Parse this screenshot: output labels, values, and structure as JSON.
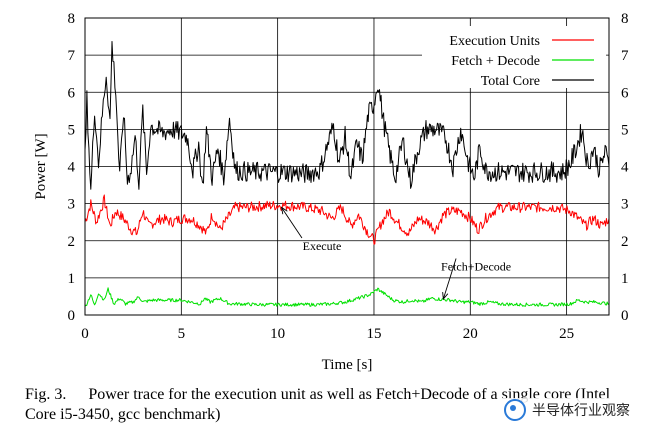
{
  "chart_data": {
    "type": "line",
    "xlabel": "Time [s]",
    "ylabel": "Power [W]",
    "xlim": [
      0,
      27.2
    ],
    "ylim": [
      0,
      8
    ],
    "x_ticks": [
      0,
      5,
      10,
      15,
      20,
      25
    ],
    "y_ticks": [
      0,
      1,
      2,
      3,
      4,
      5,
      6,
      7,
      8
    ],
    "grid": true,
    "legend_position": "top-right",
    "series": [
      {
        "name": "Execution Units",
        "color": "#ff0000",
        "points": [
          [
            0,
            2.5
          ],
          [
            0.3,
            3.0
          ],
          [
            0.6,
            2.5
          ],
          [
            1.0,
            3.1
          ],
          [
            1.3,
            2.4
          ],
          [
            1.6,
            2.8
          ],
          [
            2.0,
            2.6
          ],
          [
            2.4,
            2.3
          ],
          [
            2.7,
            2.2
          ],
          [
            3.0,
            2.8
          ],
          [
            3.3,
            2.4
          ],
          [
            3.6,
            2.5
          ],
          [
            4.0,
            2.6
          ],
          [
            4.5,
            2.5
          ],
          [
            5.0,
            2.6
          ],
          [
            5.5,
            2.6
          ],
          [
            6.0,
            2.4
          ],
          [
            6.3,
            2.2
          ],
          [
            6.6,
            2.7
          ],
          [
            7.0,
            2.3
          ],
          [
            7.4,
            2.6
          ],
          [
            7.8,
            2.9
          ],
          [
            8.5,
            2.9
          ],
          [
            9.5,
            2.95
          ],
          [
            10.5,
            2.95
          ],
          [
            11.5,
            2.9
          ],
          [
            12.3,
            2.8
          ],
          [
            12.8,
            2.6
          ],
          [
            13.3,
            2.9
          ],
          [
            13.8,
            2.4
          ],
          [
            14.2,
            2.7
          ],
          [
            14.6,
            2.3
          ],
          [
            15.0,
            2.0
          ],
          [
            15.4,
            2.5
          ],
          [
            15.8,
            2.8
          ],
          [
            16.2,
            2.5
          ],
          [
            16.8,
            2.2
          ],
          [
            17.3,
            2.6
          ],
          [
            17.8,
            2.5
          ],
          [
            18.2,
            2.3
          ],
          [
            18.6,
            2.7
          ],
          [
            19.0,
            2.8
          ],
          [
            19.5,
            2.8
          ],
          [
            20.0,
            2.6
          ],
          [
            20.4,
            2.3
          ],
          [
            20.8,
            2.6
          ],
          [
            21.2,
            2.8
          ],
          [
            21.5,
            2.9
          ],
          [
            22.5,
            2.9
          ],
          [
            23.5,
            2.9
          ],
          [
            24.5,
            2.9
          ],
          [
            25.2,
            2.8
          ],
          [
            25.6,
            2.6
          ],
          [
            26.0,
            2.4
          ],
          [
            26.4,
            2.6
          ],
          [
            26.8,
            2.4
          ],
          [
            27.2,
            2.6
          ]
        ]
      },
      {
        "name": "Fetch + Decode",
        "color": "#00e000",
        "points": [
          [
            0,
            0.2
          ],
          [
            0.3,
            0.55
          ],
          [
            0.5,
            0.25
          ],
          [
            0.7,
            0.6
          ],
          [
            1.0,
            0.4
          ],
          [
            1.2,
            0.7
          ],
          [
            1.5,
            0.3
          ],
          [
            1.8,
            0.45
          ],
          [
            2.1,
            0.3
          ],
          [
            2.5,
            0.35
          ],
          [
            2.8,
            0.5
          ],
          [
            3.0,
            0.35
          ],
          [
            3.5,
            0.4
          ],
          [
            4.0,
            0.4
          ],
          [
            5.0,
            0.4
          ],
          [
            5.5,
            0.35
          ],
          [
            6.0,
            0.3
          ],
          [
            6.2,
            0.45
          ],
          [
            6.5,
            0.35
          ],
          [
            7.0,
            0.45
          ],
          [
            7.5,
            0.3
          ],
          [
            8.0,
            0.3
          ],
          [
            9.0,
            0.28
          ],
          [
            10.0,
            0.28
          ],
          [
            11.0,
            0.28
          ],
          [
            12.0,
            0.28
          ],
          [
            12.8,
            0.3
          ],
          [
            13.5,
            0.35
          ],
          [
            14.2,
            0.45
          ],
          [
            14.8,
            0.55
          ],
          [
            15.2,
            0.7
          ],
          [
            15.6,
            0.55
          ],
          [
            16.0,
            0.4
          ],
          [
            16.5,
            0.35
          ],
          [
            17.0,
            0.4
          ],
          [
            17.5,
            0.35
          ],
          [
            18.0,
            0.45
          ],
          [
            18.5,
            0.42
          ],
          [
            19.0,
            0.4
          ],
          [
            19.5,
            0.35
          ],
          [
            20.0,
            0.35
          ],
          [
            20.5,
            0.3
          ],
          [
            21.0,
            0.35
          ],
          [
            21.5,
            0.3
          ],
          [
            22.5,
            0.28
          ],
          [
            23.5,
            0.28
          ],
          [
            24.5,
            0.28
          ],
          [
            25.2,
            0.3
          ],
          [
            25.6,
            0.4
          ],
          [
            26.0,
            0.35
          ],
          [
            26.5,
            0.35
          ],
          [
            27.2,
            0.3
          ]
        ]
      },
      {
        "name": "Total Core",
        "color": "#000000",
        "points": [
          [
            0,
            4.2
          ],
          [
            0.1,
            5.8
          ],
          [
            0.3,
            3.3
          ],
          [
            0.5,
            5.6
          ],
          [
            0.7,
            4.1
          ],
          [
            0.9,
            5.4
          ],
          [
            1.1,
            6.5
          ],
          [
            1.3,
            5.2
          ],
          [
            1.4,
            7.3
          ],
          [
            1.6,
            6.0
          ],
          [
            1.8,
            3.7
          ],
          [
            2.0,
            5.5
          ],
          [
            2.2,
            3.6
          ],
          [
            2.4,
            4.0
          ],
          [
            2.6,
            4.8
          ],
          [
            2.8,
            3.6
          ],
          [
            3.0,
            5.5
          ],
          [
            3.2,
            3.8
          ],
          [
            3.4,
            5.1
          ],
          [
            3.7,
            5.0
          ],
          [
            4.0,
            4.9
          ],
          [
            4.5,
            5.0
          ],
          [
            5.0,
            4.9
          ],
          [
            5.3,
            4.8
          ],
          [
            5.6,
            3.9
          ],
          [
            5.9,
            4.6
          ],
          [
            6.1,
            3.4
          ],
          [
            6.3,
            5.0
          ],
          [
            6.6,
            3.7
          ],
          [
            6.9,
            4.5
          ],
          [
            7.2,
            3.7
          ],
          [
            7.5,
            5.3
          ],
          [
            7.8,
            3.9
          ],
          [
            8.5,
            3.85
          ],
          [
            9.5,
            3.85
          ],
          [
            10.5,
            3.85
          ],
          [
            11.5,
            3.8
          ],
          [
            12.2,
            3.9
          ],
          [
            12.6,
            4.6
          ],
          [
            12.9,
            5.1
          ],
          [
            13.2,
            4.1
          ],
          [
            13.5,
            4.8
          ],
          [
            13.8,
            3.7
          ],
          [
            14.1,
            4.6
          ],
          [
            14.4,
            4.2
          ],
          [
            14.7,
            5.4
          ],
          [
            15.0,
            5.7
          ],
          [
            15.2,
            6.3
          ],
          [
            15.5,
            5.2
          ],
          [
            15.8,
            4.4
          ],
          [
            16.1,
            3.7
          ],
          [
            16.5,
            4.7
          ],
          [
            16.9,
            3.6
          ],
          [
            17.3,
            4.5
          ],
          [
            17.7,
            5.0
          ],
          [
            18.2,
            5.0
          ],
          [
            18.7,
            4.8
          ],
          [
            19.1,
            4.0
          ],
          [
            19.5,
            5.0
          ],
          [
            19.9,
            4.1
          ],
          [
            20.2,
            3.7
          ],
          [
            20.5,
            4.5
          ],
          [
            20.8,
            3.9
          ],
          [
            21.2,
            3.85
          ],
          [
            22.0,
            3.85
          ],
          [
            23.0,
            3.85
          ],
          [
            24.0,
            3.85
          ],
          [
            24.8,
            3.85
          ],
          [
            25.2,
            4.1
          ],
          [
            25.5,
            4.5
          ],
          [
            25.8,
            5.0
          ],
          [
            26.1,
            4.0
          ],
          [
            26.4,
            4.5
          ],
          [
            26.7,
            3.9
          ],
          [
            27.0,
            4.4
          ],
          [
            27.2,
            4.0
          ]
        ]
      }
    ],
    "annotations": [
      {
        "text": "Execute",
        "arrow_to": [
          10.2,
          2.9
        ],
        "label_at": [
          12.3,
          1.75
        ]
      },
      {
        "text": "Fetch+Decode",
        "arrow_to": [
          18.6,
          0.43
        ],
        "label_at": [
          20.3,
          1.2
        ]
      }
    ]
  },
  "caption": {
    "label": "Fig. 3.",
    "text": "Power trace for the execution unit as well as Fetch+Decode of a single core (Intel Core i5-3450, gcc benchmark)"
  },
  "watermark": {
    "text": "半导体行业观察"
  }
}
